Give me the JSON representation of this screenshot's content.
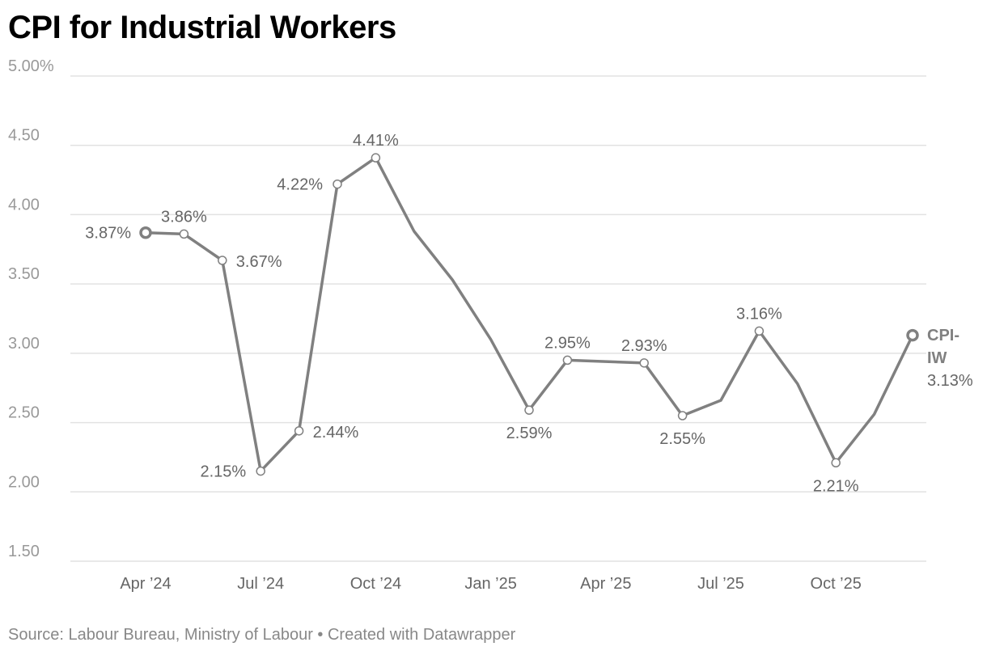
{
  "chart_data": {
    "type": "line",
    "title": "CPI for Industrial Workers",
    "xlabel": "",
    "ylabel": "",
    "ylim": [
      1.5,
      5.0
    ],
    "yticks": [
      {
        "value": 1.5,
        "label": "1.50"
      },
      {
        "value": 2.0,
        "label": "2.00"
      },
      {
        "value": 2.5,
        "label": "2.50"
      },
      {
        "value": 3.0,
        "label": "3.00"
      },
      {
        "value": 3.5,
        "label": "3.50"
      },
      {
        "value": 4.0,
        "label": "4.00"
      },
      {
        "value": 4.5,
        "label": "4.50"
      },
      {
        "value": 5.0,
        "label": "5.00%"
      }
    ],
    "xticks": [
      {
        "index": 0,
        "label": "Apr ’24"
      },
      {
        "index": 3,
        "label": "Jul ’24"
      },
      {
        "index": 6,
        "label": "Oct ’24"
      },
      {
        "index": 9,
        "label": "Jan ’25"
      },
      {
        "index": 12,
        "label": "Apr ’25"
      },
      {
        "index": 15,
        "label": "Jul ’25"
      },
      {
        "index": 18,
        "label": "Oct ’25"
      }
    ],
    "categories": [
      "Apr 2024",
      "May 2024",
      "Jun 2024",
      "Jul 2024",
      "Aug 2024",
      "Sep 2024",
      "Oct 2024",
      "Nov 2024",
      "Dec 2024",
      "Jan 2025",
      "Feb 2025",
      "Mar 2025",
      "Apr 2025",
      "May 2025",
      "Jun 2025",
      "Jul 2025",
      "Aug 2025",
      "Sep 2025",
      "Oct 2025",
      "Nov 2025",
      "Dec 2025"
    ],
    "series": [
      {
        "name": "CPI-IW",
        "color": "#808080",
        "values": [
          3.87,
          3.86,
          3.67,
          2.15,
          2.44,
          4.22,
          4.41,
          3.88,
          3.53,
          3.1,
          2.59,
          2.95,
          2.94,
          2.93,
          2.55,
          2.66,
          3.16,
          2.78,
          2.21,
          2.56,
          3.13
        ]
      }
    ],
    "data_labels": [
      {
        "index": 0,
        "text": "3.87%",
        "pos": "left"
      },
      {
        "index": 1,
        "text": "3.86%",
        "pos": "above"
      },
      {
        "index": 2,
        "text": "3.67%",
        "pos": "right"
      },
      {
        "index": 3,
        "text": "2.15%",
        "pos": "left"
      },
      {
        "index": 4,
        "text": "2.44%",
        "pos": "right"
      },
      {
        "index": 5,
        "text": "4.22%",
        "pos": "left"
      },
      {
        "index": 6,
        "text": "4.41%",
        "pos": "above"
      },
      {
        "index": 10,
        "text": "2.59%",
        "pos": "below"
      },
      {
        "index": 11,
        "text": "2.95%",
        "pos": "above"
      },
      {
        "index": 13,
        "text": "2.93%",
        "pos": "above"
      },
      {
        "index": 14,
        "text": "2.55%",
        "pos": "below"
      },
      {
        "index": 16,
        "text": "3.16%",
        "pos": "above"
      },
      {
        "index": 18,
        "text": "2.21%",
        "pos": "below"
      }
    ],
    "series_label": {
      "name_line1": "CPI-",
      "name_line2": "IW",
      "value": "3.13%"
    }
  },
  "footer": {
    "source": "Source: Labour Bureau, Ministry of Labour • Created with Datawrapper"
  }
}
